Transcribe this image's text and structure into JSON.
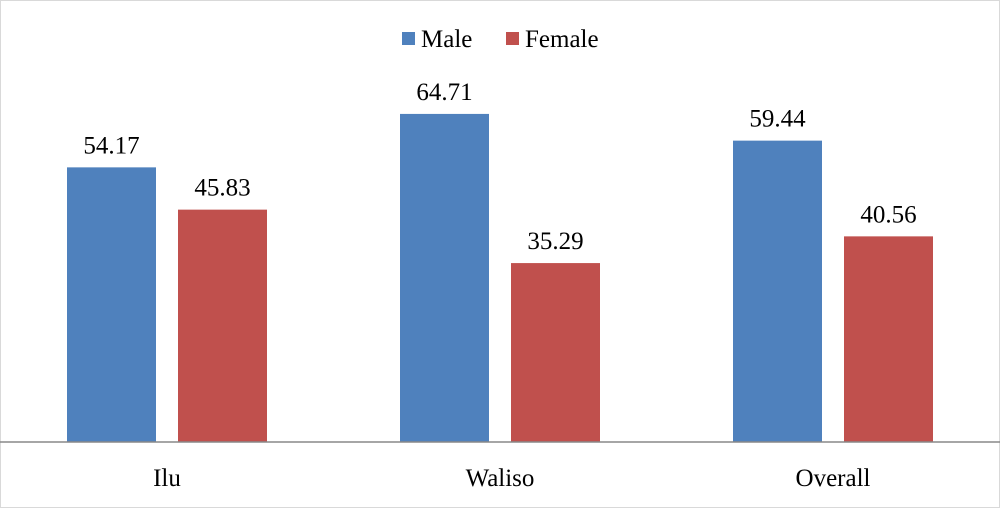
{
  "chart_data": {
    "type": "bar",
    "categories": [
      "Ilu",
      "Waliso",
      "Overall"
    ],
    "series": [
      {
        "name": "Male",
        "values": [
          54.17,
          64.71,
          59.44
        ],
        "color": "#4F81BD"
      },
      {
        "name": "Female",
        "values": [
          45.83,
          35.29,
          40.56
        ],
        "color": "#C0504D"
      }
    ],
    "ylim": [
      0,
      80
    ],
    "grid": false,
    "legend_position": "top-center",
    "data_labels": true
  }
}
